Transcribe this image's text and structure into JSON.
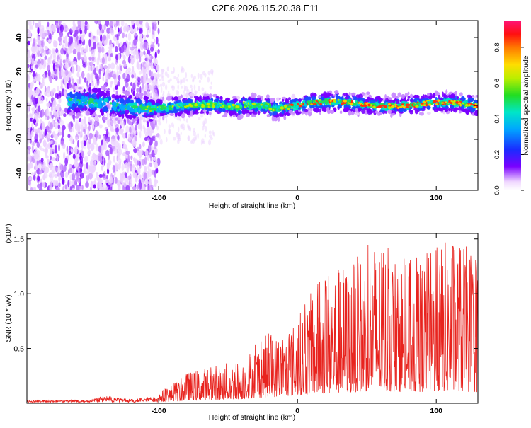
{
  "title": "C2E6.2026.115.20.38.E11",
  "chart_data": [
    {
      "type": "heatmap",
      "xlabel": "Height of straight line (km)",
      "ylabel": "Frequency (Hz)",
      "xlim": [
        -195,
        130
      ],
      "ylim": [
        -50,
        50
      ],
      "x_ticks": [
        -100,
        0,
        100
      ],
      "y_ticks": [
        40,
        20,
        0,
        -20,
        -40
      ],
      "colorbar": {
        "label": "Normalized spectral amplitude",
        "range": [
          0,
          0.95
        ],
        "ticks": [
          0.0,
          0.2,
          0.4,
          0.6,
          0.8
        ]
      },
      "description_bands": [
        {
          "x_range": [
            -195,
            -105
          ],
          "character": "scattered noise, full frequency range"
        },
        {
          "x_range": [
            -165,
            -105
          ],
          "character": "emerging signal near 0 Hz"
        },
        {
          "x_range": [
            -105,
            130
          ],
          "character": "concentrated signal within about ±10 Hz around 0 Hz, peak amplitude increasing with height"
        }
      ],
      "grid": false
    },
    {
      "type": "line",
      "xlabel": "Height of straight line (km)",
      "ylabel": "SNR (10 * v/v)",
      "y_multiplier": "(x10⁴)",
      "xlim": [
        -195,
        130
      ],
      "ylim": [
        0,
        1.55
      ],
      "x_ticks": [
        -100,
        0,
        100
      ],
      "y_ticks": [
        0.5,
        1.0,
        1.5
      ],
      "series_color": "#e8231e",
      "envelope": [
        {
          "x": -195,
          "base": 0.01,
          "peak": 0.03
        },
        {
          "x": -150,
          "base": 0.01,
          "peak": 0.04
        },
        {
          "x": -140,
          "base": 0.02,
          "peak": 0.1
        },
        {
          "x": -120,
          "base": 0.02,
          "peak": 0.05
        },
        {
          "x": -100,
          "base": 0.04,
          "peak": 0.1
        },
        {
          "x": -90,
          "base": 0.06,
          "peak": 0.18
        },
        {
          "x": -80,
          "base": 0.1,
          "peak": 0.28
        },
        {
          "x": -60,
          "base": 0.12,
          "peak": 0.35
        },
        {
          "x": -40,
          "base": 0.15,
          "peak": 0.4
        },
        {
          "x": -30,
          "base": 0.2,
          "peak": 0.55
        },
        {
          "x": -20,
          "base": 0.22,
          "peak": 0.65
        },
        {
          "x": -10,
          "base": 0.25,
          "peak": 0.6
        },
        {
          "x": 0,
          "base": 0.3,
          "peak": 0.8
        },
        {
          "x": 20,
          "base": 0.35,
          "peak": 1.25
        },
        {
          "x": 40,
          "base": 0.4,
          "peak": 1.3
        },
        {
          "x": 55,
          "base": 0.45,
          "peak": 1.5
        },
        {
          "x": 80,
          "base": 0.4,
          "peak": 1.3
        },
        {
          "x": 115,
          "base": 0.45,
          "peak": 1.55
        },
        {
          "x": 130,
          "base": 0.4,
          "peak": 1.3
        }
      ],
      "grid": false
    }
  ]
}
